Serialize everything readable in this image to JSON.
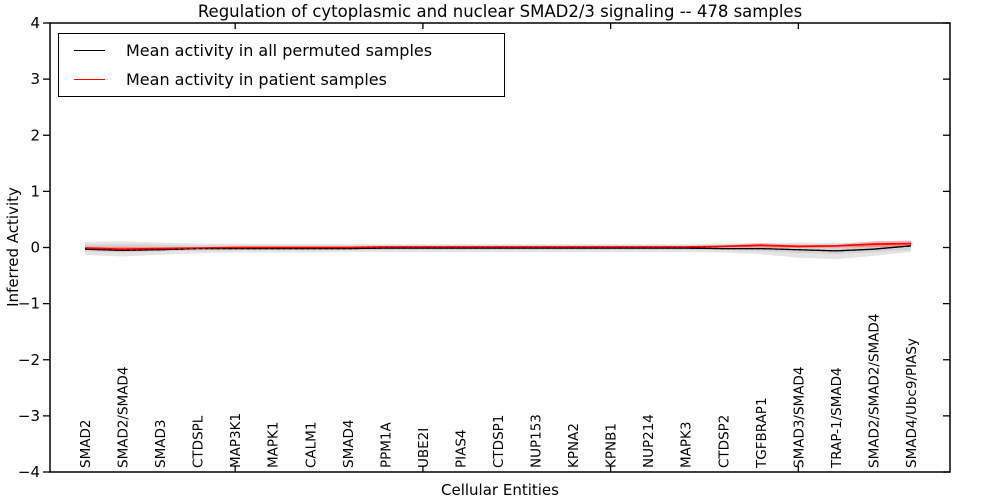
{
  "chart_data": {
    "type": "line",
    "title": "Regulation of cytoplasmic and nuclear SMAD2/3 signaling -- 478 samples",
    "xlabel": "Cellular Entities",
    "ylabel": "Inferred Activity",
    "ylim": [
      -4,
      4
    ],
    "yticks": [
      4,
      3,
      2,
      1,
      0,
      -1,
      -2,
      -3,
      -4
    ],
    "ytick_labels": [
      "4",
      "3",
      "2",
      "1",
      "0",
      "−1",
      "−2",
      "−3",
      "−4"
    ],
    "xtick_major_indices": [
      4,
      9,
      14,
      19
    ],
    "grid": false,
    "legend_position": "upper left",
    "background_color": "#ffffff",
    "categories": [
      "SMAD2",
      "SMAD2/SMAD4",
      "SMAD3",
      "CTDSPL",
      "MAP3K1",
      "MAPK1",
      "CALM1",
      "SMAD4",
      "PPM1A",
      "UBE2I",
      "PIAS4",
      "CTDSP1",
      "NUP153",
      "KPNA2",
      "KPNB1",
      "NUP214",
      "MAPK3",
      "CTDSP2",
      "TGFBRAP1",
      "SMAD3/SMAD4",
      "TRAP-1/SMAD4",
      "SMAD2/SMAD2/SMAD4",
      "SMAD4/Ubc9/PIASy"
    ],
    "series": [
      {
        "name": "Mean activity in all permuted samples",
        "color": "#000000",
        "band_color_outer": "#e4e4e4",
        "band_color_inner": "#d3d3d3",
        "values": [
          -0.03,
          -0.05,
          -0.04,
          -0.02,
          -0.02,
          -0.02,
          -0.02,
          -0.02,
          -0.01,
          -0.01,
          -0.01,
          -0.01,
          -0.01,
          -0.01,
          -0.01,
          -0.01,
          -0.01,
          -0.02,
          -0.02,
          -0.04,
          -0.06,
          -0.03,
          0.03
        ],
        "band_upper": [
          0.1,
          0.11,
          0.09,
          0.07,
          0.07,
          0.06,
          0.06,
          0.06,
          0.06,
          0.06,
          0.06,
          0.06,
          0.06,
          0.06,
          0.06,
          0.06,
          0.06,
          0.07,
          0.08,
          0.09,
          0.08,
          0.11,
          0.13
        ],
        "band_lower": [
          -0.13,
          -0.16,
          -0.13,
          -0.1,
          -0.09,
          -0.09,
          -0.09,
          -0.08,
          -0.08,
          -0.08,
          -0.08,
          -0.08,
          -0.08,
          -0.08,
          -0.08,
          -0.08,
          -0.08,
          -0.09,
          -0.12,
          -0.18,
          -0.21,
          -0.15,
          -0.08
        ]
      },
      {
        "name": "Mean activity in patient samples",
        "color": "#ff0000",
        "band_color_outer": "#f7b6b6",
        "band_color_inner": "#ef8e8e",
        "values": [
          -0.01,
          -0.03,
          -0.02,
          -0.01,
          0.0,
          0.0,
          0.0,
          0.0,
          0.01,
          0.01,
          0.01,
          0.01,
          0.01,
          0.01,
          0.01,
          0.01,
          0.01,
          0.02,
          0.04,
          0.02,
          0.03,
          0.06,
          0.07
        ],
        "band_upper": [
          0.02,
          0.02,
          0.01,
          0.01,
          0.01,
          0.01,
          0.01,
          0.01,
          0.02,
          0.02,
          0.02,
          0.02,
          0.02,
          0.02,
          0.02,
          0.02,
          0.02,
          0.04,
          0.08,
          0.05,
          0.05,
          0.11,
          0.12
        ],
        "band_lower": [
          -0.04,
          -0.07,
          -0.05,
          -0.03,
          -0.02,
          -0.02,
          -0.02,
          -0.02,
          -0.01,
          -0.01,
          -0.01,
          -0.01,
          -0.01,
          -0.01,
          -0.01,
          -0.01,
          -0.01,
          0.0,
          0.0,
          -0.01,
          0.0,
          0.01,
          0.02
        ]
      }
    ]
  }
}
